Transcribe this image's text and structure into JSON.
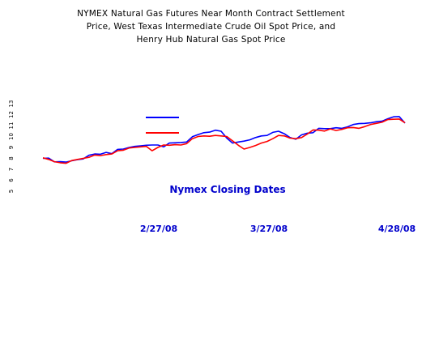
{
  "chart_data": {
    "type": "line",
    "title_lines": [
      "NYMEX Natural Gas Futures Near Month Contract Settlement",
      "Price, West Texas Intermediate Crude Oil Spot Price, and",
      "Henry Hub Natural Gas Spot Price"
    ],
    "xlabel": "Nymex Closing Dates",
    "x_tick_labels": [
      "2/27/08",
      "3/27/08",
      "4/28/08"
    ],
    "y_tick_labels": [
      "13",
      "12",
      "11",
      "10",
      "9",
      "8",
      "7",
      "6",
      "5"
    ],
    "ylim": [
      5,
      13
    ],
    "legend_placement": "top-center",
    "grid": false,
    "series": [
      {
        "color": "#0000ff",
        "values": [
          8.0,
          8.02,
          7.68,
          7.7,
          7.66,
          7.78,
          7.88,
          7.95,
          8.28,
          8.4,
          8.38,
          8.55,
          8.43,
          8.82,
          8.85,
          9.0,
          9.1,
          9.15,
          9.2,
          9.22,
          9.22,
          9.05,
          9.4,
          9.42,
          9.45,
          9.5,
          9.98,
          10.18,
          10.35,
          10.4,
          10.58,
          10.48,
          9.85,
          9.4,
          9.5,
          9.58,
          9.7,
          9.9,
          10.05,
          10.1,
          10.38,
          10.48,
          10.25,
          9.9,
          9.75,
          10.15,
          10.3,
          10.35,
          10.75,
          10.72,
          10.72,
          10.8,
          10.75,
          10.88,
          11.1,
          11.18,
          11.2,
          11.25,
          11.35,
          11.4,
          11.62,
          11.8,
          11.82,
          11.22
        ]
      },
      {
        "color": "#ff0000",
        "values": [
          8.05,
          7.9,
          7.7,
          7.6,
          7.55,
          7.8,
          7.9,
          8.0,
          8.1,
          8.3,
          8.25,
          8.35,
          8.4,
          8.7,
          8.75,
          8.95,
          9.0,
          9.05,
          9.1,
          8.7,
          9.0,
          9.22,
          9.2,
          9.25,
          9.22,
          9.35,
          9.8,
          10.0,
          10.05,
          10.02,
          10.1,
          10.05,
          10.0,
          9.6,
          9.2,
          8.85,
          9.0,
          9.18,
          9.4,
          9.55,
          9.8,
          10.1,
          10.05,
          9.85,
          9.8,
          9.9,
          10.22,
          10.6,
          10.58,
          10.5,
          10.7,
          10.55,
          10.65,
          10.8,
          10.82,
          10.75,
          10.9,
          11.1,
          11.2,
          11.3,
          11.55,
          11.58,
          11.6,
          11.25
        ]
      }
    ]
  }
}
